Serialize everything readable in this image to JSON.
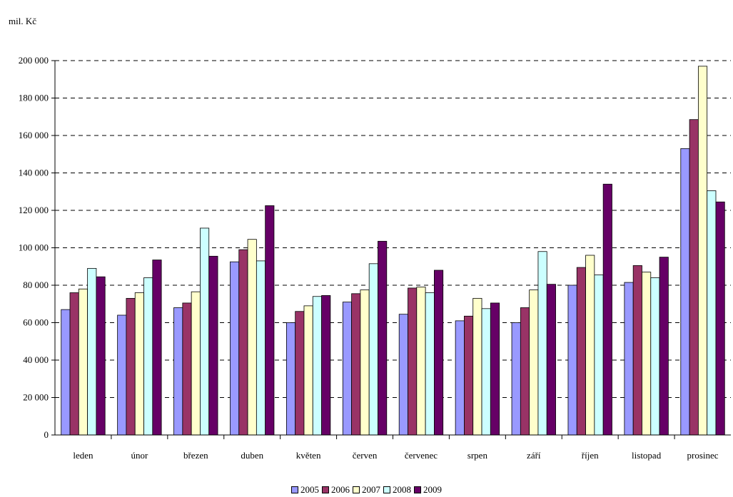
{
  "chart_data": {
    "type": "bar",
    "ylabel": "mil. Kč",
    "xlabel": "",
    "ylim": [
      0,
      200000
    ],
    "y_tick_step": 20000,
    "y_tick_labels": [
      "0",
      "20 000",
      "40 000",
      "60 000",
      "80 000",
      "100 000",
      "120 000",
      "140 000",
      "160 000",
      "180 000",
      "200 000"
    ],
    "grid": "horizontal dashed",
    "legend_position": "bottom",
    "categories": [
      "leden",
      "únor",
      "březen",
      "duben",
      "květen",
      "červen",
      "červenec",
      "srpen",
      "září",
      "říjen",
      "listopad",
      "prosinec"
    ],
    "series": [
      {
        "name": "2005",
        "color": "#9999ff",
        "values": [
          67000,
          64000,
          68000,
          92500,
          60000,
          71000,
          64500,
          61000,
          60000,
          80000,
          81500,
          153000
        ]
      },
      {
        "name": "2006",
        "color": "#993366",
        "values": [
          76000,
          73000,
          70500,
          99000,
          66000,
          75500,
          78500,
          63500,
          68000,
          89500,
          90500,
          168500
        ]
      },
      {
        "name": "2007",
        "color": "#ffffcc",
        "values": [
          78000,
          76000,
          76500,
          104500,
          69000,
          77500,
          79000,
          73000,
          77500,
          96000,
          87000,
          197000
        ]
      },
      {
        "name": "2008",
        "color": "#ccffff",
        "values": [
          89000,
          84000,
          110500,
          93000,
          74000,
          91500,
          76000,
          67500,
          98000,
          85500,
          84000,
          130500
        ]
      },
      {
        "name": "2009",
        "color": "#660066",
        "values": [
          84500,
          93500,
          95500,
          122500,
          74500,
          103500,
          88000,
          70500,
          80500,
          134000,
          95000,
          124500
        ]
      }
    ]
  }
}
